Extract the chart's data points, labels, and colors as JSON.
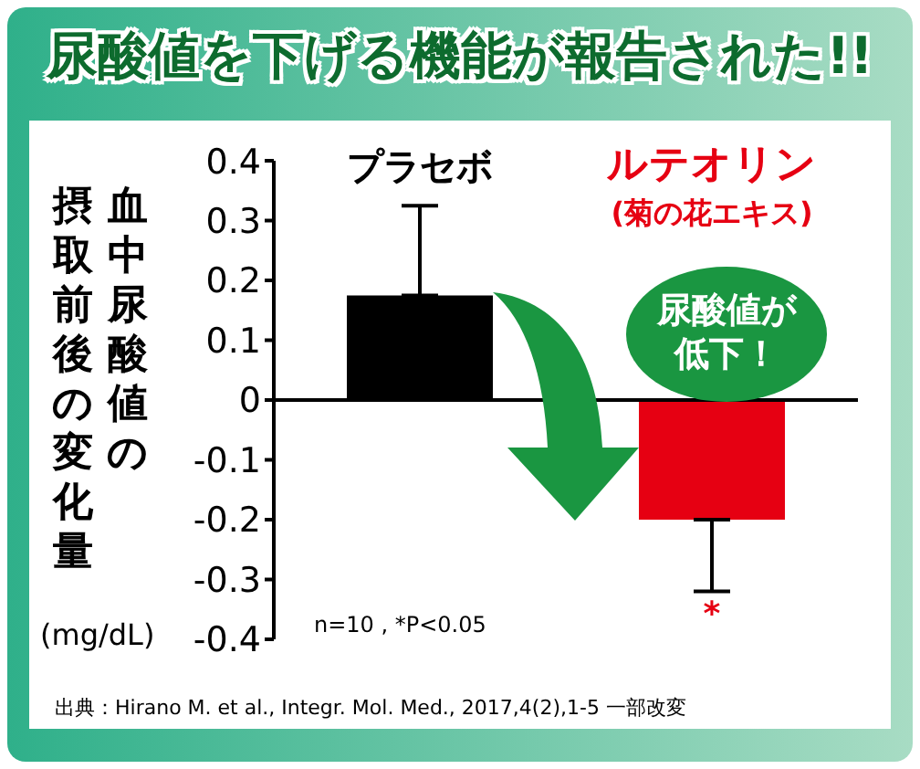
{
  "chart_data": {
    "type": "bar",
    "title": "尿酸値を下げる機能が報告された!!",
    "ylabel": "血中尿酸値の摂取前後の変化量",
    "categories": [
      "プラセボ",
      "ルテオリン\n(菊の花エキス)"
    ],
    "values": [
      0.175,
      -0.2
    ],
    "errors": [
      [
        0.175,
        0.325
      ],
      [
        -0.32,
        -0.2
      ]
    ],
    "colors": [
      "#000000",
      "#e60012"
    ],
    "ylim": [
      -0.4,
      0.4
    ],
    "yticks": [
      -0.4,
      -0.3,
      -0.2,
      -0.1,
      0,
      0.1,
      0.2,
      0.3,
      0.4
    ],
    "ref_lines": [
      {
        "axis": "y",
        "value": 0,
        "color": "#000000"
      }
    ],
    "grid": false,
    "annotations": [
      "尿酸値が低下！",
      "*",
      "n=10 , *P<0.05",
      "(mg/dL)",
      "出典：Hirano M. et al., Integr. Mol. Med., 2017,4(2),1-5 一部改変"
    ]
  }
}
